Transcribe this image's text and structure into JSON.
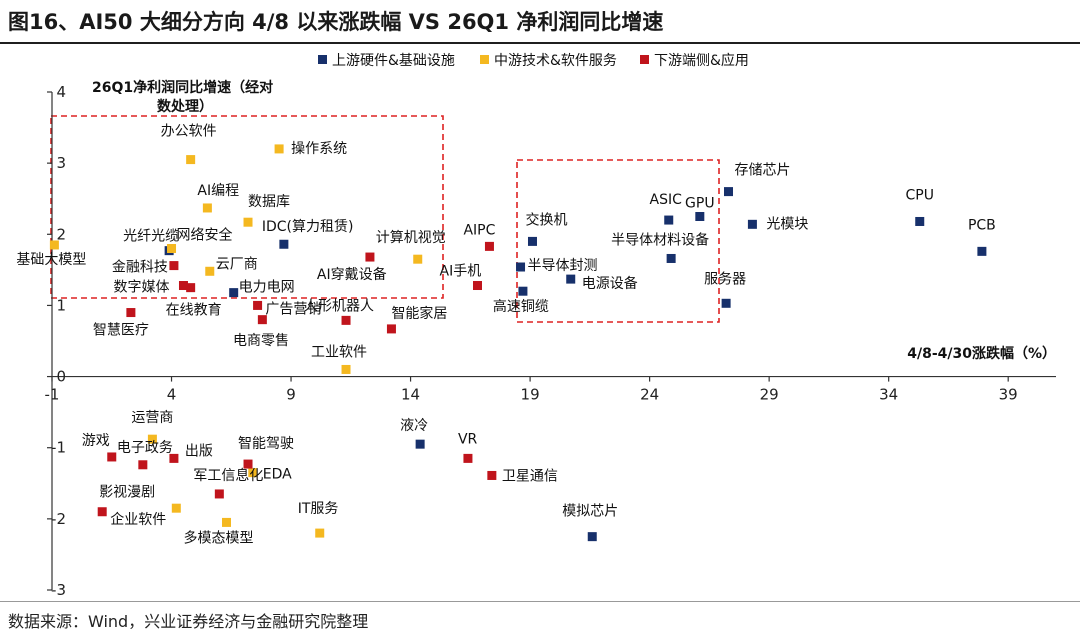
{
  "title": "图16、AI50 大细分方向 4/8 以来涨跌幅  VS 26Q1 净利润同比增速",
  "source": "数据来源：Wind，兴业证券经济与金融研究院整理",
  "chart_data": {
    "type": "scatter",
    "xlabel": "4/8-4/30涨跌幅（%）",
    "ylabel_lines": [
      "26Q1净利润同比增速（经对",
      "数处理）"
    ],
    "xlim": [
      -1,
      41
    ],
    "ylim": [
      -3,
      4
    ],
    "xticks": [
      "-1",
      "4",
      "9",
      "14",
      "19",
      "24",
      "29",
      "34",
      "39"
    ],
    "yticks": [
      "-3",
      "-2",
      "-1",
      "0",
      "1",
      "2",
      "3",
      "4"
    ],
    "legend_position": "top-right",
    "series": [
      {
        "name": "上游硬件&基础设施",
        "color": "#17306b",
        "points": [
          {
            "label": "CPU",
            "x": 35.3,
            "y": 2.18
          },
          {
            "label": "PCB",
            "x": 37.9,
            "y": 1.76
          },
          {
            "label": "存储芯片",
            "x": 27.3,
            "y": 2.6
          },
          {
            "label": "GPU",
            "x": 26.1,
            "y": 2.25
          },
          {
            "label": "ASIC",
            "x": 24.8,
            "y": 2.2
          },
          {
            "label": "光模块",
            "x": 28.3,
            "y": 2.14
          },
          {
            "label": "半导体材料设备",
            "x": 24.9,
            "y": 1.66
          },
          {
            "label": "服务器",
            "x": 27.2,
            "y": 1.03
          },
          {
            "label": "交换机",
            "x": 19.1,
            "y": 1.9
          },
          {
            "label": "半导体封测",
            "x": 18.6,
            "y": 1.54
          },
          {
            "label": "电源设备",
            "x": 20.7,
            "y": 1.37
          },
          {
            "label": "高速铜缆",
            "x": 18.7,
            "y": 1.2
          },
          {
            "label": "光纤光缆",
            "x": 3.9,
            "y": 1.77
          },
          {
            "label": "IDC(算力租赁)",
            "x": 8.7,
            "y": 1.86
          },
          {
            "label": "电力电网",
            "x": 6.6,
            "y": 1.18
          },
          {
            "label": "液冷",
            "x": 14.4,
            "y": -0.95
          },
          {
            "label": "模拟芯片",
            "x": 21.6,
            "y": -2.25
          }
        ]
      },
      {
        "name": "中游技术&软件服务",
        "color": "#f4b820",
        "points": [
          {
            "label": "基础大模型",
            "x": -0.9,
            "y": 1.85
          },
          {
            "label": "办公软件",
            "x": 4.8,
            "y": 3.05
          },
          {
            "label": "操作系统",
            "x": 8.5,
            "y": 3.2
          },
          {
            "label": "AI编程",
            "x": 5.5,
            "y": 2.37
          },
          {
            "label": "数据库",
            "x": 7.2,
            "y": 2.17
          },
          {
            "label": "网络安全",
            "x": 4.0,
            "y": 1.8
          },
          {
            "label": "云厂商",
            "x": 5.6,
            "y": 1.48
          },
          {
            "label": "计算机视觉",
            "x": 14.3,
            "y": 1.65
          },
          {
            "label": "工业软件",
            "x": 11.3,
            "y": 0.1
          },
          {
            "label": "运营商",
            "x": 3.2,
            "y": -0.88
          },
          {
            "label": "EDA",
            "x": 7.4,
            "y": -1.35
          },
          {
            "label": "企业软件",
            "x": 4.2,
            "y": -1.85
          },
          {
            "label": "多模态模型",
            "x": 6.3,
            "y": -2.05
          },
          {
            "label": "IT服务",
            "x": 10.2,
            "y": -2.2
          }
        ]
      },
      {
        "name": "下游端侧&应用",
        "color": "#c0141c",
        "points": [
          {
            "label": "金融科技",
            "x": 4.1,
            "y": 1.56
          },
          {
            "label": "数字媒体",
            "x": 4.5,
            "y": 1.28
          },
          {
            "label": "数字媒体b",
            "x": 4.8,
            "y": 1.25
          },
          {
            "label": "在线教育",
            "x": 7.6,
            "y": 1.0
          },
          {
            "label": "智慧医疗",
            "x": 2.3,
            "y": 0.9
          },
          {
            "label": "广告营销",
            "x": 7.8,
            "y": 0.8
          },
          {
            "label": "AI穿戴设备",
            "x": 12.3,
            "y": 1.68
          },
          {
            "label": "AIPC",
            "x": 17.3,
            "y": 1.83
          },
          {
            "label": "AI手机",
            "x": 16.8,
            "y": 1.28
          },
          {
            "label": "人形机器人",
            "x": 11.3,
            "y": 0.79
          },
          {
            "label": "智能家居",
            "x": 13.2,
            "y": 0.67
          },
          {
            "label": "游戏",
            "x": 1.5,
            "y": -1.13
          },
          {
            "label": "电子政务",
            "x": 2.8,
            "y": -1.24
          },
          {
            "label": "出版",
            "x": 4.1,
            "y": -1.15
          },
          {
            "label": "智能驾驶",
            "x": 7.2,
            "y": -1.23
          },
          {
            "label": "VR",
            "x": 16.4,
            "y": -1.15
          },
          {
            "label": "卫星通信",
            "x": 17.4,
            "y": -1.39
          },
          {
            "label": "军工信息化",
            "x": 6.0,
            "y": -1.65
          },
          {
            "label": "影视漫剧",
            "x": 1.1,
            "y": -1.9
          }
        ]
      }
    ],
    "annotations": [
      "电商零售"
    ]
  }
}
